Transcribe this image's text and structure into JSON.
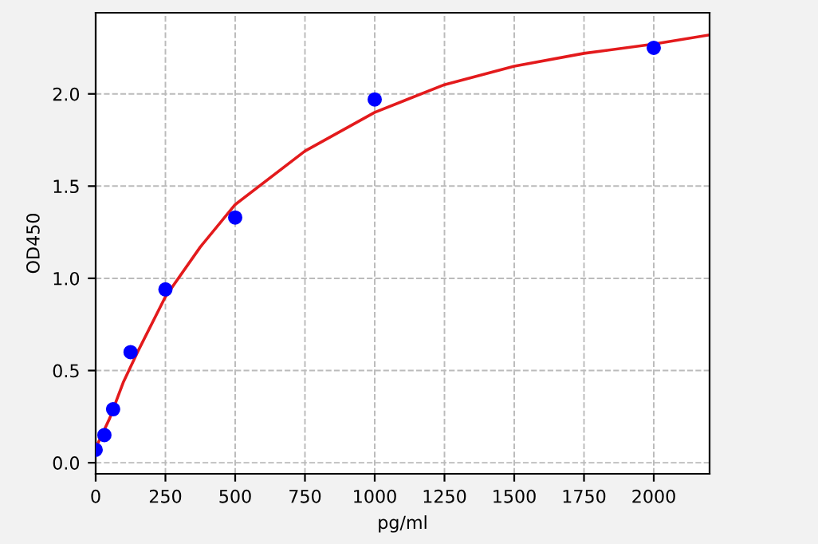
{
  "chart_data": {
    "type": "scatter",
    "xlabel": "pg/ml",
    "ylabel": "OD450",
    "xlim": [
      0,
      2200
    ],
    "ylim": [
      -0.06,
      2.44
    ],
    "xticks": [
      0,
      250,
      500,
      750,
      1000,
      1250,
      1500,
      1750,
      2000
    ],
    "yticks": [
      {
        "value": 0,
        "label": "0.0"
      },
      {
        "value": 0.5,
        "label": "0.5"
      },
      {
        "value": 1,
        "label": "1.0"
      },
      {
        "value": 1.5,
        "label": "1.5"
      },
      {
        "value": 2,
        "label": "2.0"
      }
    ],
    "grid": true,
    "series": [
      {
        "type": "line",
        "color": "#e31a1c",
        "marker": "none",
        "line_style": "solid",
        "x": [
          0,
          50,
          100,
          150,
          250,
          375,
          500,
          750,
          1000,
          1250,
          1500,
          1750,
          2000,
          2200
        ],
        "values": [
          0.08,
          0.24,
          0.44,
          0.6,
          0.9,
          1.17,
          1.4,
          1.69,
          1.9,
          2.05,
          2.15,
          2.22,
          2.27,
          2.32
        ]
      },
      {
        "marker": "circle",
        "color": "#0000ff",
        "x": [
          0,
          31.25,
          62.5,
          125,
          250,
          500,
          1000,
          2000
        ],
        "values": [
          0.07,
          0.15,
          0.29,
          0.6,
          0.94,
          1.33,
          1.97,
          2.25
        ]
      }
    ]
  }
}
